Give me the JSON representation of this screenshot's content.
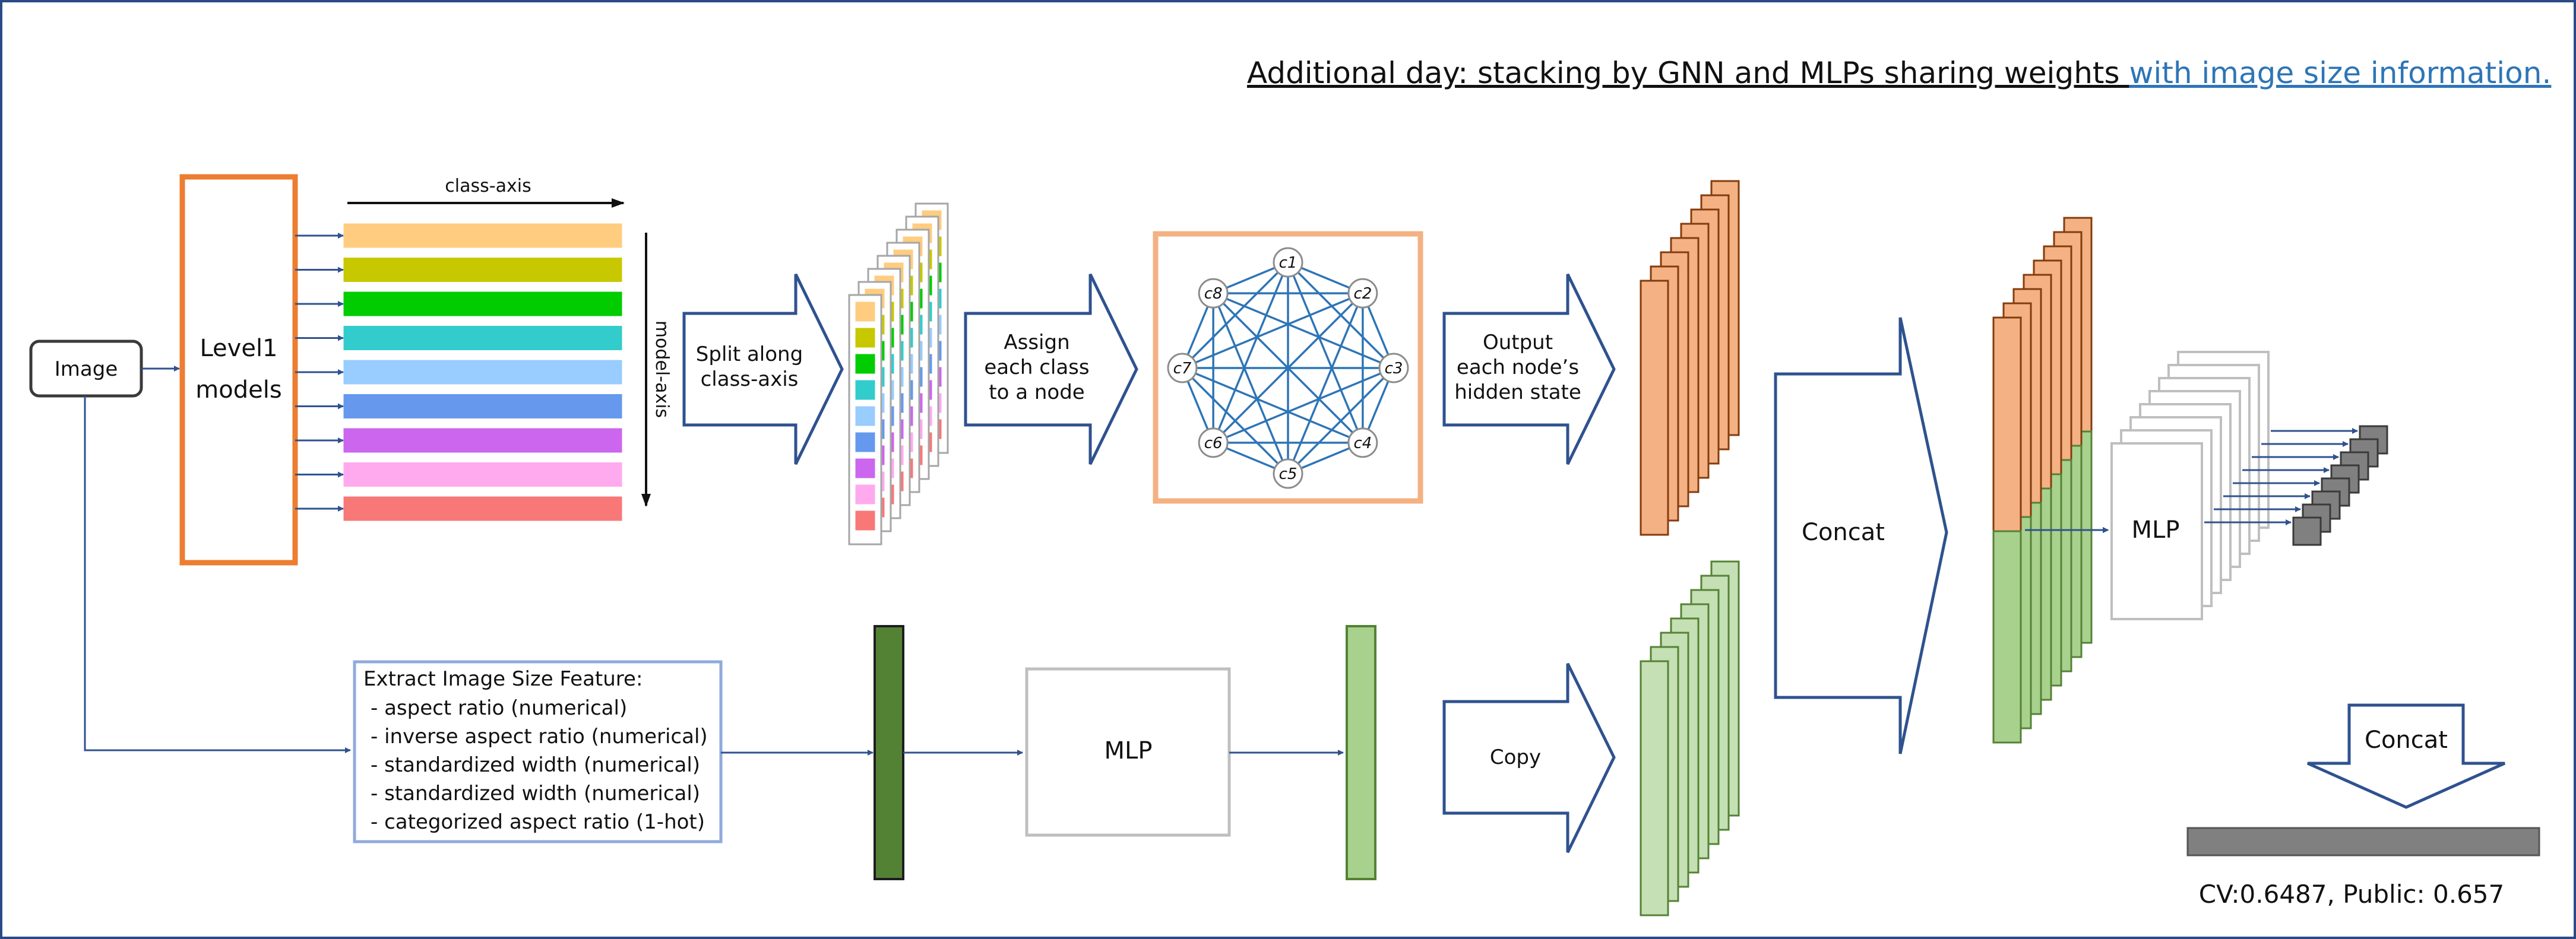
{
  "title": {
    "main": "Additional day: stacking by GNN and MLPs sharing weights ",
    "highlight": "with image size information.",
    "highlight_color": "#2e75b6"
  },
  "image_node": {
    "label": "Image"
  },
  "level1": {
    "line1": "Level1",
    "line2": "models",
    "border_color": "#ed7d31"
  },
  "axes": {
    "class_axis": "class-axis",
    "model_axis": "model-axis"
  },
  "model_bar_colors": [
    "#ffcc80",
    "#c8c800",
    "#00cc00",
    "#33cccc",
    "#99ccff",
    "#6699ee",
    "#cc66ee",
    "#ffaaee",
    "#f87878"
  ],
  "arrows": {
    "split": {
      "line1": "Split along",
      "line2": "class-axis"
    },
    "assign": {
      "line1": "Assign",
      "line2": "each class",
      "line3": "to a node"
    },
    "output": {
      "line1": "Output",
      "line2": "each node’s",
      "line3": "hidden state"
    },
    "concat_main": "Concat",
    "copy": "Copy",
    "concat_down": "Concat"
  },
  "graph": {
    "border_color": "#f4b183",
    "edge_color": "#2e75b6",
    "nodes": [
      "c1",
      "c2",
      "c3",
      "c4",
      "c5",
      "c6",
      "c7",
      "c8"
    ]
  },
  "feature_box": {
    "title": "Extract Image Size Feature:",
    "items": [
      "- aspect ratio (numerical)",
      "- inverse aspect ratio (numerical)",
      "- standardized width (numerical)",
      "- standardized width (numerical)",
      "- categorized aspect ratio (1-hot)"
    ],
    "border_color": "#8faadc"
  },
  "mlp_bottom": "MLP",
  "mlp_right": "MLP",
  "colors": {
    "orange_fill": "#f4b183",
    "orange_stroke": "#843c0c",
    "green_fill": "#a9d18e",
    "green_light": "#c5e0b4",
    "green_stroke": "#548235",
    "dark_green": "#548235",
    "gray_bar": "#808080"
  },
  "score": "CV:0.6487, Public: 0.657"
}
